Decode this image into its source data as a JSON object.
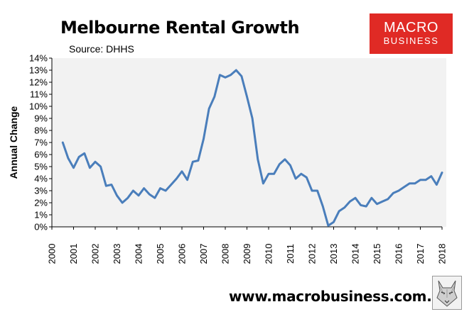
{
  "header": {
    "title": "Melbourne Rental Growth",
    "subtitle": "Source: DHHS"
  },
  "logo": {
    "line1": "MACRO",
    "line2": "BUSINESS"
  },
  "footer": {
    "website": "www.macrobusiness.com.au"
  },
  "wolf_icon": "wolf-logo-icon",
  "colors": {
    "line": "#4a7ebb",
    "plot_bg": "#f2f2f2",
    "logo_bg": "#e02a25"
  },
  "chart_data": {
    "type": "line",
    "title": "Melbourne Rental Growth",
    "subtitle": "Source: DHHS",
    "ylabel": "Annual Change",
    "xlabel": "",
    "xlim": [
      2000,
      2018
    ],
    "ylim": [
      0,
      14
    ],
    "x_ticks": [
      "2000",
      "2001",
      "2002",
      "2003",
      "2004",
      "2005",
      "2006",
      "2007",
      "2008",
      "2009",
      "2010",
      "2011",
      "2012",
      "2013",
      "2014",
      "2015",
      "2016",
      "2017",
      "2018"
    ],
    "y_ticks": [
      "0%",
      "1%",
      "2%",
      "3%",
      "4%",
      "5%",
      "6%",
      "7%",
      "8%",
      "9%",
      "10%",
      "11%",
      "12%",
      "13%",
      "14%"
    ],
    "grid": false,
    "legend": "none",
    "series": [
      {
        "x": [
          2000.5,
          2000.75,
          2001,
          2001.25,
          2001.5,
          2001.75,
          2002,
          2002.25,
          2002.5,
          2002.75,
          2003,
          2003.25,
          2003.5,
          2003.75,
          2004,
          2004.25,
          2004.5,
          2004.75,
          2005,
          2005.25,
          2005.5,
          2005.75,
          2006,
          2006.25,
          2006.5,
          2006.75,
          2007,
          2007.25,
          2007.5,
          2007.75,
          2008,
          2008.25,
          2008.5,
          2008.75,
          2009,
          2009.25,
          2009.5,
          2009.75,
          2010,
          2010.25,
          2010.5,
          2010.75,
          2011,
          2011.25,
          2011.5,
          2011.75,
          2012,
          2012.25,
          2012.5,
          2012.75,
          2013,
          2013.25,
          2013.5,
          2013.75,
          2014,
          2014.25,
          2014.5,
          2014.75,
          2015,
          2015.25,
          2015.5,
          2015.75,
          2016,
          2016.25,
          2016.5,
          2016.75,
          2017,
          2017.25,
          2017.5,
          2017.75,
          2018
        ],
        "y": [
          7.0,
          5.7,
          4.9,
          5.8,
          6.1,
          4.9,
          5.4,
          5.0,
          3.4,
          3.5,
          2.6,
          2.0,
          2.4,
          3.0,
          2.6,
          3.2,
          2.7,
          2.4,
          3.2,
          3.0,
          3.5,
          4.0,
          4.6,
          3.9,
          5.4,
          5.5,
          7.3,
          9.8,
          10.8,
          12.6,
          12.4,
          12.6,
          13.0,
          12.5,
          10.8,
          9.0,
          5.6,
          3.6,
          4.4,
          4.4,
          5.2,
          5.6,
          5.1,
          4.0,
          4.4,
          4.1,
          3.0,
          3.0,
          1.7,
          0.1,
          0.4,
          1.3,
          1.6,
          2.1,
          2.4,
          1.8,
          1.7,
          2.4,
          1.9,
          2.1,
          2.3,
          2.8,
          3.0,
          3.3,
          3.6,
          3.6,
          3.9,
          3.9,
          4.2,
          3.5,
          4.5
        ]
      }
    ]
  }
}
